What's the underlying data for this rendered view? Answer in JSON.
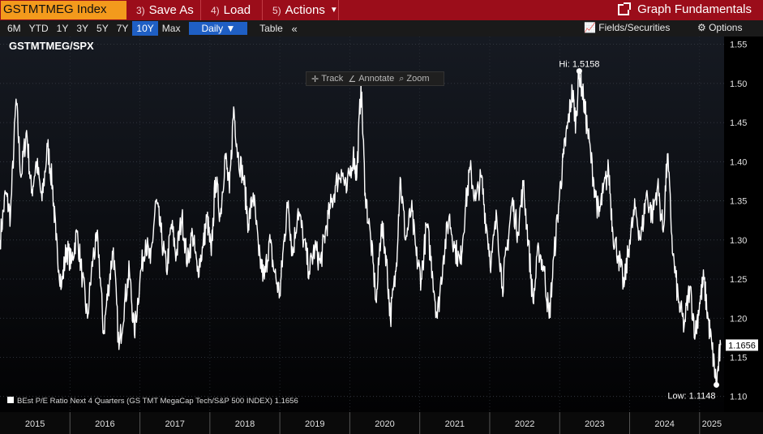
{
  "topbar": {
    "ticker": "GSTMTMEG Index",
    "save_as": {
      "num": "3)",
      "label": "Save As"
    },
    "load": {
      "num": "4)",
      "label": "Load"
    },
    "actions": {
      "num": "5)",
      "label": "Actions"
    },
    "graph_fundamentals": "Graph Fundamentals"
  },
  "toolbar": {
    "ranges": [
      "6M",
      "YTD",
      "1Y",
      "3Y",
      "5Y",
      "7Y",
      "10Y",
      "Max"
    ],
    "active_range": "10Y",
    "frequency": "Daily",
    "table": "Table",
    "collapse": "«",
    "track": "Track",
    "annotate": "Annotate",
    "zoom": "Zoom",
    "fields": "Fields/Securities",
    "options": "Options"
  },
  "colors": {
    "accent_red": "#9b0d1a",
    "ticker_orange": "#f39a1c",
    "active_blue": "#1f5fc4",
    "line": "#ffffff"
  },
  "chart_data": {
    "type": "line",
    "title": "GSTMTMEG/SPX",
    "legend": "BEst P/E Ratio Next 4 Quarters (GS TMT MegaCap Tech/S&P 500 INDEX) 1.1656",
    "legend_placement": "bottom-left",
    "last_value": "1.1656",
    "hi_label": "Hi: 1.5158",
    "low_label": "Low: 1.1148",
    "ylim": [
      1.08,
      1.56
    ],
    "yticks": [
      "1.10",
      "1.15",
      "1.20",
      "1.25",
      "1.30",
      "1.35",
      "1.40",
      "1.45",
      "1.50",
      "1.55"
    ],
    "xlim": [
      2015.0,
      2025.35
    ],
    "xtick_labels": [
      "2015",
      "2016",
      "2017",
      "2018",
      "2019",
      "2020",
      "2021",
      "2022",
      "2023",
      "2024",
      "2025"
    ],
    "grid": true,
    "series": [
      {
        "values": [
          [
            2015.0,
            1.3
          ],
          [
            2015.08,
            1.36
          ],
          [
            2015.15,
            1.33
          ],
          [
            2015.23,
            1.48
          ],
          [
            2015.3,
            1.38
          ],
          [
            2015.38,
            1.44
          ],
          [
            2015.45,
            1.36
          ],
          [
            2015.52,
            1.4
          ],
          [
            2015.6,
            1.35
          ],
          [
            2015.68,
            1.42
          ],
          [
            2015.75,
            1.37
          ],
          [
            2015.8,
            1.3
          ],
          [
            2015.88,
            1.24
          ],
          [
            2015.95,
            1.29
          ],
          [
            2016.02,
            1.27
          ],
          [
            2016.1,
            1.31
          ],
          [
            2016.18,
            1.25
          ],
          [
            2016.25,
            1.2
          ],
          [
            2016.33,
            1.28
          ],
          [
            2016.4,
            1.3
          ],
          [
            2016.48,
            1.18
          ],
          [
            2016.55,
            1.24
          ],
          [
            2016.62,
            1.29
          ],
          [
            2016.7,
            1.16
          ],
          [
            2016.78,
            1.22
          ],
          [
            2016.85,
            1.26
          ],
          [
            2016.92,
            1.18
          ],
          [
            2017.0,
            1.25
          ],
          [
            2017.08,
            1.3
          ],
          [
            2017.15,
            1.27
          ],
          [
            2017.23,
            1.35
          ],
          [
            2017.3,
            1.31
          ],
          [
            2017.38,
            1.26
          ],
          [
            2017.45,
            1.32
          ],
          [
            2017.52,
            1.28
          ],
          [
            2017.6,
            1.33
          ],
          [
            2017.68,
            1.27
          ],
          [
            2017.75,
            1.31
          ],
          [
            2017.82,
            1.26
          ],
          [
            2017.9,
            1.29
          ],
          [
            2017.96,
            1.33
          ],
          [
            2018.02,
            1.28
          ],
          [
            2018.08,
            1.38
          ],
          [
            2018.15,
            1.33
          ],
          [
            2018.22,
            1.41
          ],
          [
            2018.28,
            1.36
          ],
          [
            2018.34,
            1.47
          ],
          [
            2018.4,
            1.41
          ],
          [
            2018.48,
            1.38
          ],
          [
            2018.55,
            1.32
          ],
          [
            2018.62,
            1.36
          ],
          [
            2018.7,
            1.28
          ],
          [
            2018.78,
            1.25
          ],
          [
            2018.85,
            1.3
          ],
          [
            2018.92,
            1.26
          ],
          [
            2019.0,
            1.23
          ],
          [
            2019.06,
            1.3
          ],
          [
            2019.12,
            1.35
          ],
          [
            2019.18,
            1.28
          ],
          [
            2019.26,
            1.34
          ],
          [
            2019.34,
            1.3
          ],
          [
            2019.42,
            1.26
          ],
          [
            2019.5,
            1.29
          ],
          [
            2019.58,
            1.27
          ],
          [
            2019.65,
            1.31
          ],
          [
            2019.72,
            1.34
          ],
          [
            2019.8,
            1.37
          ],
          [
            2019.88,
            1.39
          ],
          [
            2019.95,
            1.36
          ],
          [
            2020.05,
            1.41
          ],
          [
            2020.1,
            1.38
          ],
          [
            2020.16,
            1.5
          ],
          [
            2020.22,
            1.36
          ],
          [
            2020.3,
            1.3
          ],
          [
            2020.38,
            1.22
          ],
          [
            2020.45,
            1.32
          ],
          [
            2020.52,
            1.28
          ],
          [
            2020.58,
            1.2
          ],
          [
            2020.66,
            1.26
          ],
          [
            2020.72,
            1.38
          ],
          [
            2020.8,
            1.3
          ],
          [
            2020.88,
            1.34
          ],
          [
            2020.95,
            1.28
          ],
          [
            2021.02,
            1.25
          ],
          [
            2021.1,
            1.32
          ],
          [
            2021.18,
            1.26
          ],
          [
            2021.25,
            1.2
          ],
          [
            2021.34,
            1.28
          ],
          [
            2021.42,
            1.33
          ],
          [
            2021.5,
            1.29
          ],
          [
            2021.58,
            1.27
          ],
          [
            2021.65,
            1.34
          ],
          [
            2021.72,
            1.39
          ],
          [
            2021.8,
            1.35
          ],
          [
            2021.88,
            1.38
          ],
          [
            2021.95,
            1.32
          ],
          [
            2022.02,
            1.27
          ],
          [
            2022.1,
            1.33
          ],
          [
            2022.18,
            1.24
          ],
          [
            2022.25,
            1.29
          ],
          [
            2022.32,
            1.35
          ],
          [
            2022.4,
            1.31
          ],
          [
            2022.48,
            1.37
          ],
          [
            2022.55,
            1.3
          ],
          [
            2022.62,
            1.22
          ],
          [
            2022.7,
            1.29
          ],
          [
            2022.78,
            1.26
          ],
          [
            2022.85,
            1.2
          ],
          [
            2022.92,
            1.28
          ],
          [
            2023.0,
            1.36
          ],
          [
            2023.06,
            1.41
          ],
          [
            2023.12,
            1.45
          ],
          [
            2023.18,
            1.49
          ],
          [
            2023.23,
            1.45
          ],
          [
            2023.28,
            1.5158
          ],
          [
            2023.34,
            1.48
          ],
          [
            2023.4,
            1.44
          ],
          [
            2023.48,
            1.38
          ],
          [
            2023.56,
            1.33
          ],
          [
            2023.62,
            1.36
          ],
          [
            2023.7,
            1.39
          ],
          [
            2023.76,
            1.31
          ],
          [
            2023.84,
            1.28
          ],
          [
            2023.92,
            1.24
          ],
          [
            2024.0,
            1.3
          ],
          [
            2024.08,
            1.34
          ],
          [
            2024.16,
            1.3
          ],
          [
            2024.24,
            1.36
          ],
          [
            2024.32,
            1.33
          ],
          [
            2024.4,
            1.37
          ],
          [
            2024.48,
            1.31
          ],
          [
            2024.54,
            1.41
          ],
          [
            2024.62,
            1.28
          ],
          [
            2024.7,
            1.22
          ],
          [
            2024.78,
            1.19
          ],
          [
            2024.86,
            1.24
          ],
          [
            2024.94,
            1.18
          ],
          [
            2025.0,
            1.22
          ],
          [
            2025.06,
            1.25
          ],
          [
            2025.12,
            1.2
          ],
          [
            2025.18,
            1.16
          ],
          [
            2025.24,
            1.1148
          ],
          [
            2025.3,
            1.1656
          ]
        ]
      }
    ]
  }
}
